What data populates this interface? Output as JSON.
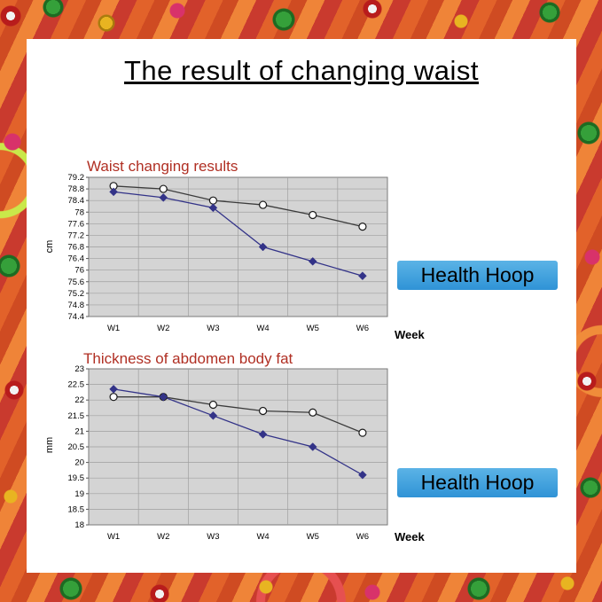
{
  "page": {
    "title": "The result of changing waist"
  },
  "colors": {
    "chart_title_red": "#b02f23",
    "badge_blue": "#3d9fd9",
    "series_navy": "#333388",
    "series_dark": "#3c3c3c",
    "plot_background": "#d4d4d4"
  },
  "chart_data": [
    {
      "type": "line",
      "title": "Waist changing results",
      "ylabel": "cm",
      "xlabel": "Week",
      "badge": "Health Hoop",
      "categories": [
        "W1",
        "W2",
        "W3",
        "W4",
        "W5",
        "W6"
      ],
      "ylim": [
        74.4,
        79.2
      ],
      "ystep": 0.4,
      "grid": true,
      "legend": "none",
      "series": [
        {
          "name": "circle series",
          "marker": "circle",
          "color": "#3c3c3c",
          "values": [
            78.9,
            78.8,
            78.4,
            78.25,
            77.9,
            77.5
          ]
        },
        {
          "name": "diamond series",
          "marker": "diamond",
          "color": "#333388",
          "values": [
            78.7,
            78.5,
            78.15,
            76.8,
            76.3,
            75.8
          ]
        }
      ]
    },
    {
      "type": "line",
      "title": "Thickness of abdomen body fat",
      "ylabel": "mm",
      "xlabel": "Week",
      "badge": "Health Hoop",
      "categories": [
        "W1",
        "W2",
        "W3",
        "W4",
        "W5",
        "W6"
      ],
      "ylim": [
        18,
        23
      ],
      "ystep": 0.5,
      "grid": true,
      "legend": "none",
      "series": [
        {
          "name": "circle series",
          "marker": "circle",
          "color": "#3c3c3c",
          "values": [
            22.1,
            22.1,
            21.85,
            21.65,
            21.6,
            20.95
          ]
        },
        {
          "name": "diamond series",
          "marker": "diamond",
          "color": "#333388",
          "values": [
            22.35,
            22.1,
            21.5,
            20.9,
            20.5,
            19.6
          ]
        }
      ]
    }
  ]
}
